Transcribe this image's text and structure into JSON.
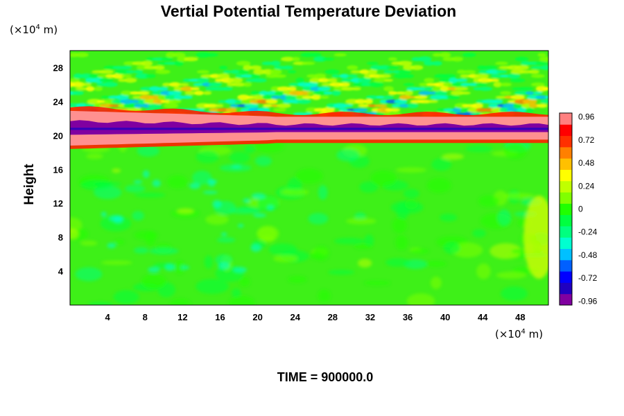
{
  "chart_data": {
    "type": "heatmap",
    "title": "Vertial Potential Temperature Deviation",
    "ylabel": "Height",
    "xlabel": "",
    "x_unit": {
      "prefix": "(×10",
      "exp": "4",
      "suffix": " m)"
    },
    "y_unit": {
      "prefix": "(×10",
      "exp": "4",
      "suffix": " m)"
    },
    "xlim": [
      0,
      51
    ],
    "ylim": [
      0,
      30
    ],
    "x_ticks": [
      "4",
      "8",
      "12",
      "16",
      "20",
      "24",
      "28",
      "32",
      "36",
      "40",
      "44",
      "48"
    ],
    "x_tick_values": [
      4,
      8,
      12,
      16,
      20,
      24,
      28,
      32,
      36,
      40,
      44,
      48
    ],
    "y_ticks": [
      "4",
      "8",
      "12",
      "16",
      "20",
      "24",
      "28"
    ],
    "y_tick_values": [
      4,
      8,
      12,
      16,
      20,
      24,
      28
    ],
    "colorbar": {
      "range": [
        -1.0,
        1.0
      ],
      "ticks": [
        "0.96",
        "0.72",
        "0.48",
        "0.24",
        "0",
        "-0.24",
        "-0.48",
        "-0.72",
        "-0.96"
      ],
      "tick_values": [
        0.96,
        0.72,
        0.48,
        0.24,
        0,
        -0.24,
        -0.48,
        -0.72,
        -0.96
      ],
      "colors": [
        "#8000a0",
        "#2000c0",
        "#0000ff",
        "#0060ff",
        "#00c0ff",
        "#00ffd0",
        "#00ff80",
        "#00ff40",
        "#20ff00",
        "#80ff00",
        "#c0ff00",
        "#ffff00",
        "#ffc000",
        "#ff8000",
        "#ff3000",
        "#ff0000",
        "#ff8080"
      ]
    },
    "field_description": {
      "background_value": -0.05,
      "inversion_layer_height": 20.8,
      "wave_zone": [
        22,
        30
      ]
    },
    "grid": false
  },
  "footer": {
    "time_label": "TIME = 900000.0"
  }
}
